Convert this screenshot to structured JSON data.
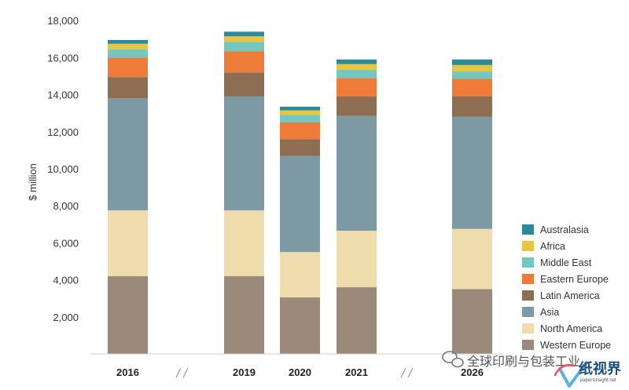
{
  "chart_data": {
    "type": "bar",
    "stacked": true,
    "categories": [
      "2016",
      "2019",
      "2020",
      "2021",
      "2026"
    ],
    "axis_breaks_after": [
      "2016",
      "2021"
    ],
    "ylabel": "$ million",
    "ylim": [
      0,
      18000
    ],
    "yticks": [
      "2,000",
      "4,000",
      "6,000",
      "8,000",
      "10,000",
      "12,000",
      "14,000",
      "16,000",
      "18,000"
    ],
    "ytick_values": [
      2000,
      4000,
      6000,
      8000,
      10000,
      12000,
      14000,
      16000,
      18000
    ],
    "grid": false,
    "legend_position": "bottom-right",
    "series": [
      {
        "name": "Western Europe",
        "color": "#9b8a7a",
        "values": [
          4200,
          4200,
          3050,
          3600,
          3500
        ]
      },
      {
        "name": "North America",
        "color": "#eedcac",
        "values": [
          3550,
          3550,
          2450,
          3050,
          3250
        ]
      },
      {
        "name": "Asia",
        "color": "#7c99a4",
        "values": [
          6050,
          6150,
          5200,
          6200,
          6050
        ]
      },
      {
        "name": "Latin America",
        "color": "#8e6e53",
        "values": [
          1150,
          1300,
          900,
          1050,
          1100
        ]
      },
      {
        "name": "Eastern Europe",
        "color": "#ef7b38",
        "values": [
          1050,
          1150,
          900,
          1000,
          950
        ]
      },
      {
        "name": "Middle East",
        "color": "#72c8c0",
        "values": [
          450,
          500,
          400,
          450,
          400
        ]
      },
      {
        "name": "Africa",
        "color": "#e9c43d",
        "values": [
          300,
          300,
          250,
          300,
          350
        ]
      },
      {
        "name": "Australasia",
        "color": "#2b8a99",
        "values": [
          200,
          250,
          200,
          250,
          300
        ]
      }
    ]
  },
  "watermark": {
    "channel": "全球印刷与包装工业",
    "brand": "纸视界",
    "url": "papersinsight.net"
  }
}
